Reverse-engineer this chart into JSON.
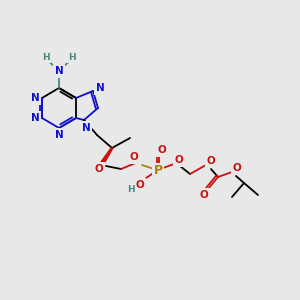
{
  "bg_color": "#e8e8e8",
  "colors": {
    "N": "#1010cc",
    "O": "#cc1010",
    "P": "#b08000",
    "H": "#4a8888",
    "bond": "#000000"
  },
  "figsize": [
    3.0,
    3.0
  ],
  "dpi": 100,
  "lw": 1.3,
  "fs": 7.5,
  "fs_sm": 6.5
}
